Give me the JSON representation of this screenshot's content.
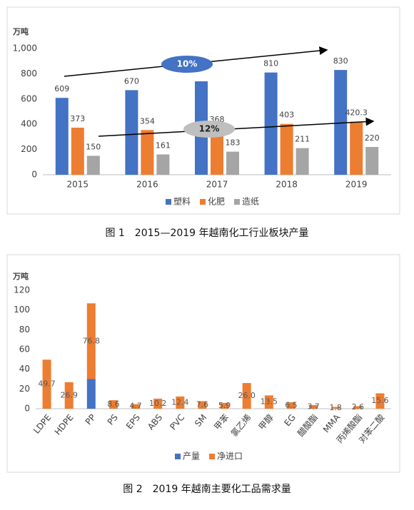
{
  "chart_data": [
    {
      "type": "bar",
      "ylabel": "万吨",
      "categories": [
        "2015",
        "2016",
        "2017",
        "2018",
        "2019"
      ],
      "series": [
        {
          "name": "塑料",
          "color": "#4472c4",
          "values": [
            609,
            670,
            740,
            810,
            830
          ],
          "value_labels": [
            "609",
            "670",
            null,
            "810",
            "830"
          ]
        },
        {
          "name": "化肥",
          "color": "#ed7d31",
          "values": [
            373,
            354,
            368,
            403,
            420.3
          ],
          "data_labels": true
        },
        {
          "name": "造纸",
          "color": "#a5a5a5",
          "values": [
            150,
            161,
            183,
            211,
            220
          ],
          "data_labels": true
        }
      ],
      "ylim": [
        0,
        1000
      ],
      "yticks": [
        0,
        200,
        400,
        600,
        800,
        {
          "value": 1000,
          "label": "1,000"
        }
      ],
      "grid": false,
      "legend": "bottom",
      "annotations": [
        "10%",
        "12%"
      ],
      "caption": "图 1　2015—2019 年越南化工行业板块产量"
    },
    {
      "type": "bar",
      "stacked": true,
      "ylabel": "万吨",
      "categories": [
        "LDPE",
        "HDPE",
        "PP",
        "PS",
        "EPS",
        "ABS",
        "PVC",
        "SM",
        "甲苯",
        "氯乙烯",
        "甲醇",
        "EG",
        "醋酸酯",
        "MMA",
        "丙烯酸酯",
        "对苯二酸"
      ],
      "series": [
        {
          "name": "产量",
          "color": "#4472c4",
          "values": [
            null,
            null,
            30,
            null,
            null,
            null,
            null,
            null,
            null,
            null,
            null,
            null,
            null,
            null,
            null,
            null
          ],
          "data_labels": false
        },
        {
          "name": "净进口",
          "color": "#ed7d31",
          "values": [
            49.7,
            26.9,
            76.8,
            8.6,
            4.7,
            10.2,
            12.4,
            7.6,
            5.9,
            26.0,
            13.5,
            6.5,
            3.7,
            1.8,
            2.6,
            15.6
          ],
          "value_labels": [
            "49.7",
            "26.9",
            "76.8",
            "8.6",
            "4.7",
            "10.2",
            "12.4",
            "7.6",
            "5.9",
            "26.0",
            "13.5",
            "6.5",
            "3.7",
            "1.8",
            "2.6",
            "15.6"
          ]
        }
      ],
      "ylim": [
        0,
        120
      ],
      "yticks": [
        0,
        20,
        40,
        60,
        80,
        100,
        120
      ],
      "grid": false,
      "legend": "bottom",
      "caption": "图 2　2019 年越南主要化工品需求量"
    }
  ]
}
